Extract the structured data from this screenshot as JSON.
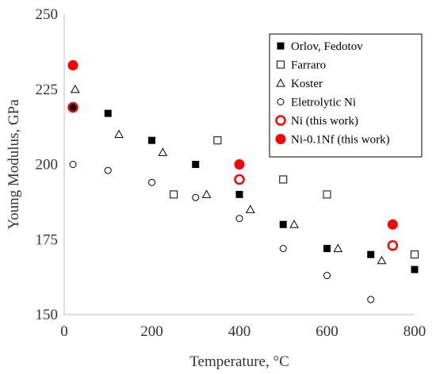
{
  "chart_data": {
    "type": "scatter",
    "xlabel": "Temperature, °C",
    "ylabel": "Young  Modulus, GPa",
    "xlim": [
      0,
      800
    ],
    "ylim": [
      150,
      250
    ],
    "xticks": [
      0,
      200,
      400,
      600,
      800
    ],
    "yticks": [
      150,
      175,
      200,
      225,
      250
    ],
    "grid": false,
    "legend_position": "top-right",
    "series": [
      {
        "name": "Orlov, Fedotov",
        "marker": "square-filled",
        "color": "#000000",
        "points": [
          [
            20,
            219
          ],
          [
            100,
            217
          ],
          [
            200,
            208
          ],
          [
            300,
            200
          ],
          [
            400,
            190
          ],
          [
            500,
            180
          ],
          [
            600,
            172
          ],
          [
            700,
            170
          ],
          [
            800,
            165
          ]
        ]
      },
      {
        "name": "Farraro",
        "marker": "square-open",
        "color": "#000000",
        "points": [
          [
            250,
            190
          ],
          [
            350,
            208
          ],
          [
            500,
            195
          ],
          [
            600,
            190
          ],
          [
            800,
            170
          ]
        ]
      },
      {
        "name": "Koster",
        "marker": "triangle-open",
        "color": "#000000",
        "points": [
          [
            25,
            225
          ],
          [
            125,
            210
          ],
          [
            225,
            204
          ],
          [
            325,
            190
          ],
          [
            425,
            185
          ],
          [
            525,
            180
          ],
          [
            625,
            172
          ],
          [
            725,
            168
          ]
        ]
      },
      {
        "name": "Eletrolytic Ni",
        "marker": "circle-open",
        "color": "#000000",
        "points": [
          [
            20,
            200
          ],
          [
            100,
            198
          ],
          [
            200,
            194
          ],
          [
            300,
            189
          ],
          [
            400,
            182
          ],
          [
            500,
            172
          ],
          [
            600,
            163
          ],
          [
            700,
            155
          ]
        ]
      },
      {
        "name": "Ni (this work)",
        "marker": "circle-open-red",
        "color": "#ff0000",
        "points": [
          [
            20,
            219
          ],
          [
            400,
            195
          ],
          [
            750,
            173
          ]
        ]
      },
      {
        "name": "Ni-0.1Nf (this work)",
        "marker": "circle-filled-red",
        "color": "#ff0000",
        "points": [
          [
            20,
            233
          ],
          [
            400,
            200
          ],
          [
            750,
            180
          ]
        ]
      }
    ]
  }
}
